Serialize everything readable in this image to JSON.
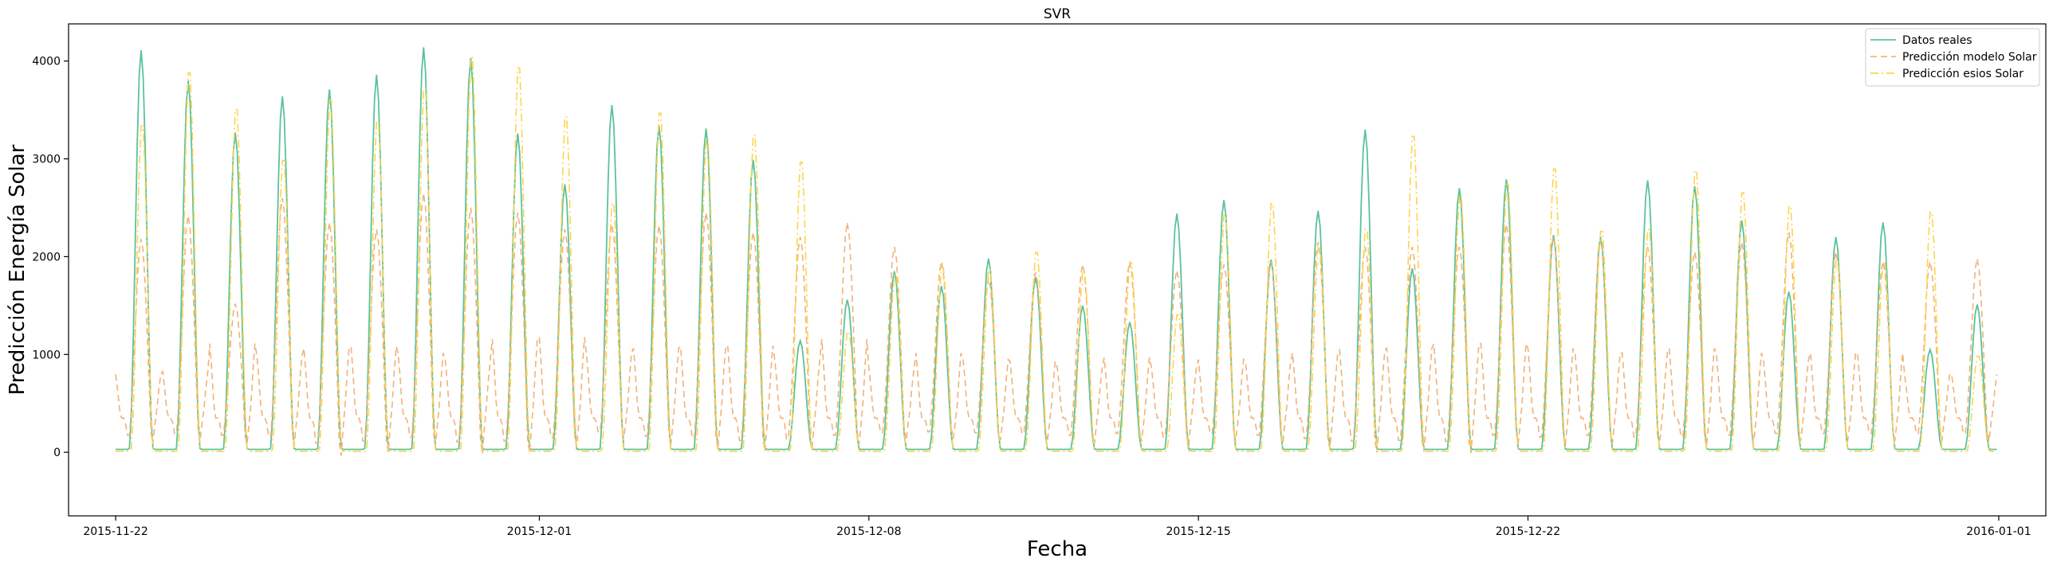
{
  "chart_data": {
    "type": "line",
    "title": "SVR",
    "xlabel": "Fecha",
    "ylabel": "Predicción Energía Solar",
    "xlim": [
      "2015-11-21",
      "2016-01-02"
    ],
    "ylim": [
      -650,
      4380
    ],
    "x_ticks": [
      "2015-11-22",
      "2015-12-01",
      "2015-12-08",
      "2015-12-15",
      "2015-12-22",
      "2016-01-01"
    ],
    "y_ticks": [
      0,
      1000,
      2000,
      3000,
      4000
    ],
    "grid": false,
    "legend_position": "top-right",
    "start_date": "2015-11-22",
    "days": [
      "2015-11-22",
      "2015-11-23",
      "2015-11-24",
      "2015-11-25",
      "2015-11-26",
      "2015-11-27",
      "2015-11-28",
      "2015-11-29",
      "2015-11-30",
      "2015-12-01",
      "2015-12-02",
      "2015-12-03",
      "2015-12-04",
      "2015-12-05",
      "2015-12-06",
      "2015-12-07",
      "2015-12-08",
      "2015-12-09",
      "2015-12-10",
      "2015-12-11",
      "2015-12-12",
      "2015-12-13",
      "2015-12-14",
      "2015-12-15",
      "2015-12-16",
      "2015-12-17",
      "2015-12-18",
      "2015-12-19",
      "2015-12-20",
      "2015-12-21",
      "2015-12-22",
      "2015-12-23",
      "2015-12-24",
      "2015-12-25",
      "2015-12-26",
      "2015-12-27",
      "2015-12-28",
      "2015-12-29",
      "2015-12-30",
      "2015-12-31"
    ],
    "series": [
      {
        "name": "Datos reales",
        "color": "#5cc29a",
        "dash": "solid",
        "base": 30,
        "daily_peak": [
          4110,
          3800,
          3270,
          3640,
          3710,
          3860,
          4140,
          4030,
          3260,
          2740,
          3550,
          3340,
          3310,
          2990,
          1140,
          1560,
          1850,
          1700,
          1980,
          1790,
          1500,
          1330,
          2440,
          2580,
          1970,
          2470,
          3300,
          1880,
          2700,
          2790,
          2220,
          2200,
          2780,
          2720,
          2370,
          1640,
          2200,
          2350,
          1050,
          1510
        ]
      },
      {
        "name": "Predicción modelo Solar",
        "color": "#f0b27a",
        "dash": "dashed",
        "night": [
          820,
          850,
          1150,
          1020,
          1100,
          1120,
          1050,
          980,
          1200,
          1220,
          1050,
          1100,
          1120,
          1130,
          980,
          1200,
          880,
          1050,
          980,
          960,
          900,
          1000,
          900,
          980,
          950,
          1050,
          1080,
          1100,
          1150,
          1150,
          1100,
          1050,
          1050,
          1100,
          1050,
          980,
          1050,
          1050,
          820,
          820
        ],
        "daily_peak": [
          2180,
          2420,
          1520,
          2600,
          2350,
          2280,
          2650,
          2500,
          2450,
          2280,
          2330,
          2320,
          2450,
          2250,
          2200,
          2350,
          2100,
          1950,
          1780,
          1840,
          1920,
          1950,
          1860,
          1920,
          1950,
          2150,
          2100,
          2100,
          2100,
          2330,
          2200,
          2180,
          2100,
          2050,
          2150,
          2250,
          2050,
          1950,
          1950,
          1980
        ],
        "daily_min": [
          -150,
          -100,
          -150,
          -200,
          -380,
          -320,
          -200,
          -350,
          -320,
          -220,
          -50,
          -180,
          -250,
          -300,
          -260,
          -150,
          -80,
          -50,
          -80,
          -100,
          -150,
          -100,
          -200,
          -100,
          -150,
          -250,
          -320,
          -300,
          -330,
          -150,
          -200,
          -150,
          -200,
          -200,
          -150,
          -100,
          -100,
          -100,
          -100,
          -100
        ]
      },
      {
        "name": "Predicción esios Solar",
        "color": "#ffd34d",
        "dash": "dashdot",
        "base": 10,
        "daily_peak": [
          3400,
          3950,
          3570,
          3040,
          3660,
          3450,
          3780,
          4110,
          4000,
          3490,
          2590,
          3530,
          3260,
          3300,
          3020,
          1250,
          1850,
          1920,
          1900,
          2080,
          1880,
          1970,
          1430,
          2470,
          2590,
          2130,
          2320,
          3290,
          2680,
          2790,
          2950,
          2300,
          2320,
          2930,
          2700,
          2560,
          2000,
          1970,
          2500,
          1000
        ]
      }
    ]
  }
}
